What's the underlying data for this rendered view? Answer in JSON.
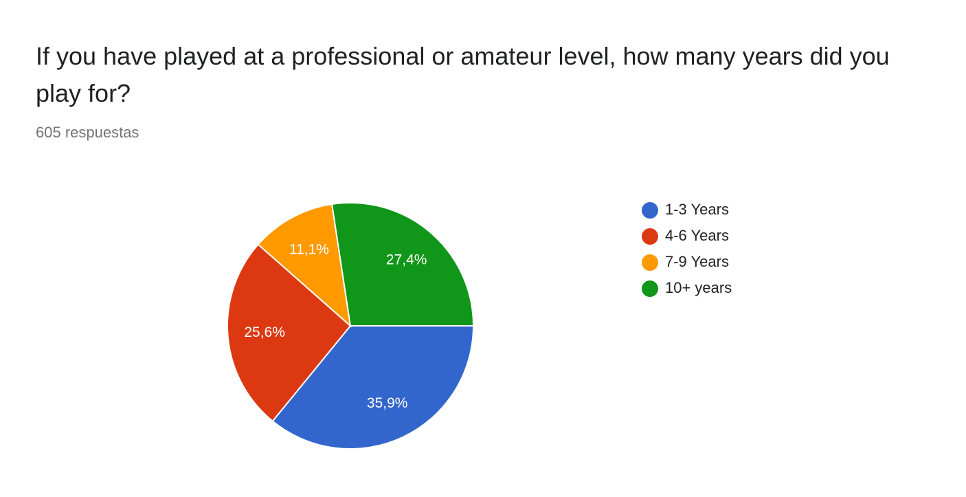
{
  "chart_data": {
    "type": "pie",
    "title": "If you have played at a professional or amateur level, how many years did you play for?",
    "subtitle": "605 respuestas",
    "categories": [
      "1-3 Years",
      "4-6 Years",
      "7-9 Years",
      "10+ years"
    ],
    "values": [
      35.9,
      25.6,
      11.1,
      27.4
    ],
    "value_labels": [
      "35,9%",
      "25,6%",
      "11,1%",
      "27,4%"
    ],
    "colors": [
      "#3366cc",
      "#dc3912",
      "#ff9900",
      "#109618"
    ],
    "legend": "right"
  }
}
